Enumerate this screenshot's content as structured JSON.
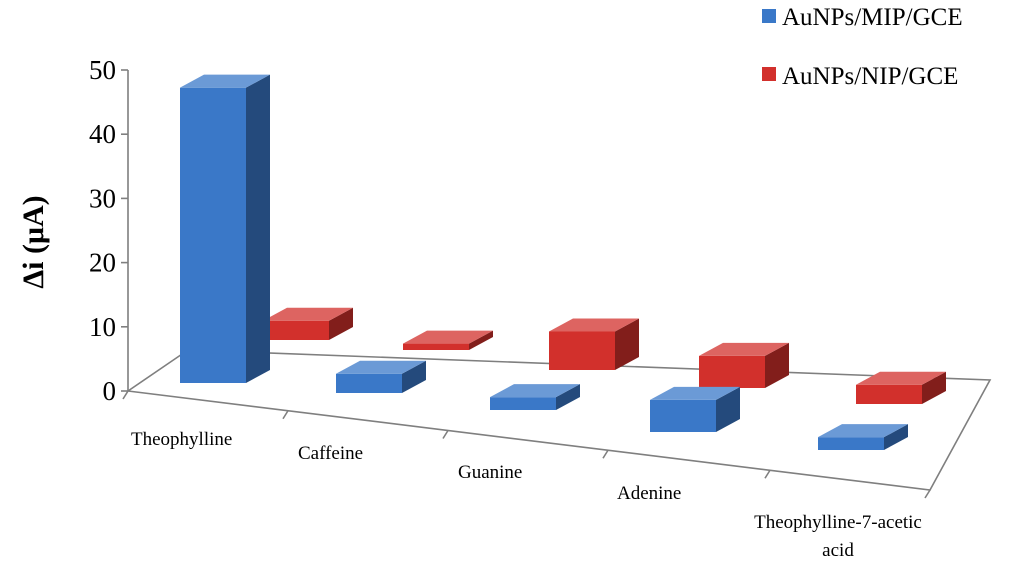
{
  "chart_data": {
    "type": "bar",
    "three_d": true,
    "categories": [
      "Theophylline",
      "Caffeine",
      "Guanine",
      "Adenine",
      "Theophylline-7-acetic acid"
    ],
    "series": [
      {
        "name": "AuNPs/MIP/GCE",
        "color": "#3a78c8",
        "values": [
          46,
          3,
          2,
          5,
          2
        ]
      },
      {
        "name": "AuNPs/NIP/GCE",
        "color": "#d2302c",
        "values": [
          3,
          1,
          6,
          5,
          3
        ]
      }
    ],
    "ylabel": "Δi (μA)",
    "ylim": [
      0,
      50
    ],
    "yticks": [
      0,
      10,
      20,
      30,
      40,
      50
    ],
    "grid": false,
    "legend": "top-right"
  }
}
